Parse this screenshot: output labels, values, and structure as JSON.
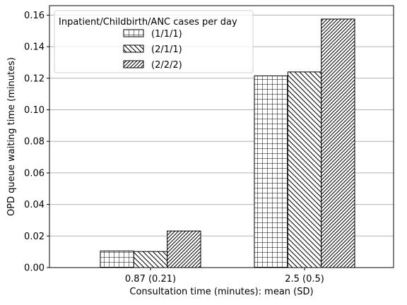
{
  "chart_data": {
    "type": "bar",
    "title": "",
    "xlabel": "Consultation time (minutes): mean (SD)",
    "ylabel": "OPD queue waiting time (minutes)",
    "categories": [
      "0.87 (0.21)",
      "2.5 (0.5)"
    ],
    "series": [
      {
        "name": "(1/1/1)",
        "values": [
          0.0105,
          0.1215
        ],
        "hatch": "grid"
      },
      {
        "name": "(2/1/1)",
        "values": [
          0.0102,
          0.124
        ],
        "hatch": "backslash"
      },
      {
        "name": "(2/2/2)",
        "values": [
          0.0232,
          0.1575
        ],
        "hatch": "slash"
      }
    ],
    "ylim": [
      0,
      0.166
    ],
    "yticks": [
      "0.00",
      "0.02",
      "0.04",
      "0.06",
      "0.08",
      "0.10",
      "0.12",
      "0.14",
      "0.16"
    ],
    "grid": "horizontal",
    "legend": {
      "title": "Inpatient/Childbirth/ANC cases per day",
      "placement": "top-left"
    },
    "colors": {
      "bar_fill": "#ffffff",
      "bar_edge": "#000000",
      "grid": "#b0b0b0"
    }
  }
}
